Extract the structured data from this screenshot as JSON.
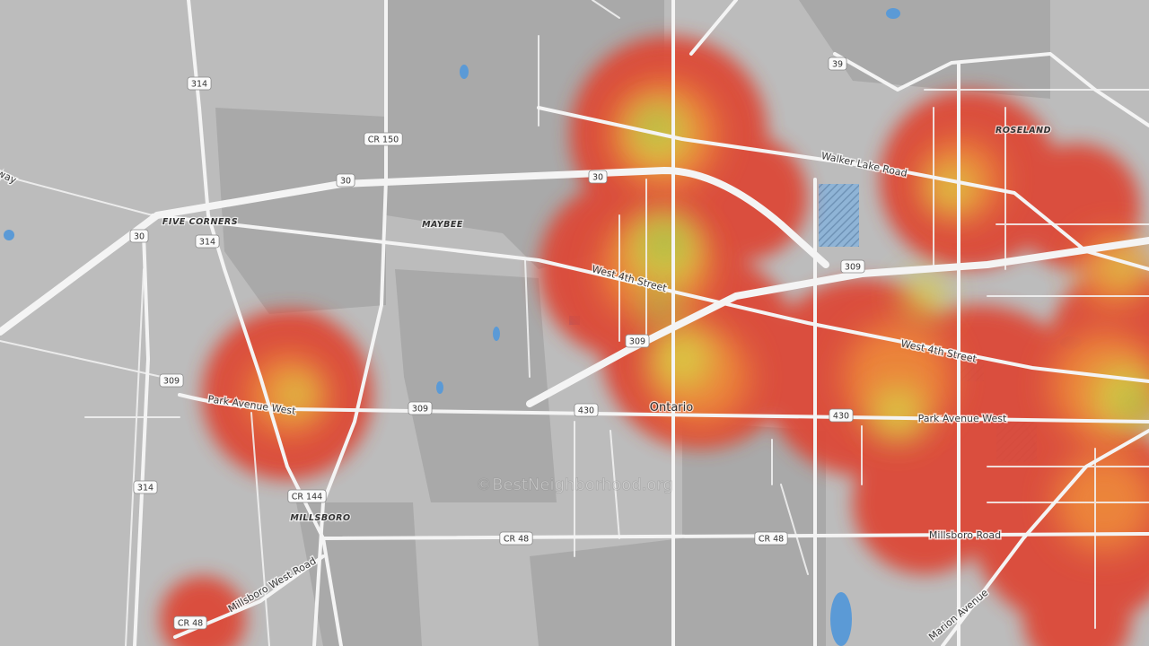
{
  "map": {
    "shields": [
      "314",
      "CR 150",
      "30",
      "30",
      "39",
      "309",
      "314",
      "30",
      "309",
      "309",
      "430",
      "430",
      "309",
      "CR 144",
      "314",
      "CR 48",
      "CR 48",
      "CR 48"
    ],
    "places": [
      "ROSELAND",
      "FIVE CORNERS",
      "MAYBEE",
      "MILLSBORO",
      "Ontario"
    ],
    "roads": [
      "Walker Lake Road",
      "West 4th Street",
      "West 4th Street",
      "Park Avenue West",
      "Park Avenue West",
      "Millsboro West Road",
      "Millsboro Road",
      "Marion Avenue",
      "way"
    ],
    "watermark": "©BestNeighborhood.org"
  }
}
